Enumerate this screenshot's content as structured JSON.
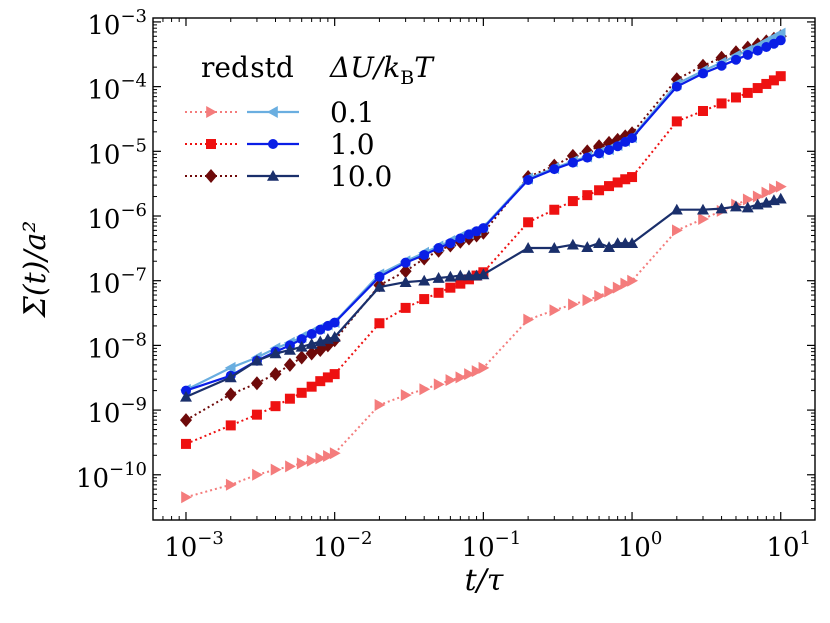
{
  "chart_data": {
    "type": "line",
    "title": "",
    "xlabel": "t/τ",
    "ylabel": "Σ(t)/a²",
    "xscale": "log",
    "yscale": "log",
    "xlim": [
      0.0006,
      17
    ],
    "ylim": [
      2e-11,
      0.00115
    ],
    "x_ticks": [
      {
        "value": 0.001,
        "mantissa": "10",
        "exp": "−3"
      },
      {
        "value": 0.01,
        "mantissa": "10",
        "exp": "−2"
      },
      {
        "value": 0.1,
        "mantissa": "10",
        "exp": "−1"
      },
      {
        "value": 1,
        "mantissa": "10",
        "exp": "0"
      },
      {
        "value": 10,
        "mantissa": "10",
        "exp": "1"
      }
    ],
    "y_ticks": [
      {
        "value": 1e-10,
        "mantissa": "10",
        "exp": "−10"
      },
      {
        "value": 1e-09,
        "mantissa": "10",
        "exp": "−9"
      },
      {
        "value": 1e-08,
        "mantissa": "10",
        "exp": "−8"
      },
      {
        "value": 1e-07,
        "mantissa": "10",
        "exp": "−7"
      },
      {
        "value": 1e-06,
        "mantissa": "10",
        "exp": "−6"
      },
      {
        "value": 1e-05,
        "mantissa": "10",
        "exp": "−5"
      },
      {
        "value": 0.0001,
        "mantissa": "10",
        "exp": "−4"
      },
      {
        "value": 0.001,
        "mantissa": "10",
        "exp": "−3"
      }
    ],
    "x": [
      0.001,
      0.002,
      0.003,
      0.004,
      0.005,
      0.006,
      0.007,
      0.008,
      0.009,
      0.01,
      0.02,
      0.03,
      0.04,
      0.05,
      0.06,
      0.07,
      0.08,
      0.09,
      0.1,
      0.2,
      0.3,
      0.4,
      0.5,
      0.6,
      0.7,
      0.8,
      0.9,
      1,
      2,
      3,
      4,
      5,
      6,
      7,
      8,
      9,
      10
    ],
    "legend": {
      "col_headers": [
        "red",
        "std"
      ],
      "title": "ΔU/k_BT",
      "title_parts": {
        "main": "ΔU/k",
        "sub": "B",
        "tail": "T"
      },
      "labels": [
        "0.1",
        "1.0",
        "10.0"
      ],
      "placement": "upper-left"
    },
    "series": [
      {
        "name": "red 0.1",
        "color": "#f47c7c",
        "marker": "triangle-right",
        "linestyle": "dotted",
        "values": [
          4.5e-11,
          7e-11,
          1e-10,
          1.2e-10,
          1.35e-10,
          1.5e-10,
          1.65e-10,
          1.8e-10,
          1.95e-10,
          2.15e-10,
          1.2e-09,
          1.7e-09,
          2.1e-09,
          2.5e-09,
          2.9e-09,
          3.2e-09,
          3.6e-09,
          4e-09,
          4.5e-09,
          2.5e-08,
          3.5e-08,
          4.3e-08,
          5e-08,
          5.8e-08,
          6.8e-08,
          7.8e-08,
          9e-08,
          1e-07,
          6e-07,
          9e-07,
          1.2e-06,
          1.5e-06,
          1.8e-06,
          2e-06,
          2.3e-06,
          2.6e-06,
          2.85e-06
        ]
      },
      {
        "name": "red 1.0",
        "color": "#ee1111",
        "marker": "square",
        "linestyle": "dotted",
        "values": [
          3e-10,
          5.8e-10,
          8.5e-10,
          1.15e-09,
          1.5e-09,
          1.85e-09,
          2.3e-09,
          2.8e-09,
          3.2e-09,
          3.6e-09,
          2.2e-08,
          3.8e-08,
          5.2e-08,
          6.5e-08,
          7.8e-08,
          9e-08,
          1.05e-07,
          1.2e-07,
          1.35e-07,
          8e-07,
          1.25e-06,
          1.7e-06,
          2.1e-06,
          2.5e-06,
          2.9e-06,
          3.3e-06,
          3.7e-06,
          4e-06,
          2.9e-05,
          4.2e-05,
          5.5e-05,
          6.8e-05,
          8e-05,
          9.5e-05,
          0.00011,
          0.000125,
          0.000145
        ]
      },
      {
        "name": "red 10.0",
        "color": "#6e0a0a",
        "marker": "diamond",
        "linestyle": "dotted",
        "values": [
          7e-10,
          1.75e-09,
          2.6e-09,
          3.6e-09,
          5e-09,
          6.5e-09,
          7.5e-09,
          8.5e-09,
          1e-08,
          1.2e-08,
          8.5e-08,
          1.4e-07,
          2.2e-07,
          2.9e-07,
          3.5e-07,
          4e-07,
          4.5e-07,
          5e-07,
          5.5e-07,
          4e-06,
          6e-06,
          8.5e-06,
          1e-05,
          1.2e-05,
          1.35e-05,
          1.5e-05,
          1.7e-05,
          1.9e-05,
          0.00013,
          0.00021,
          0.00028,
          0.00034,
          0.0004,
          0.00045,
          0.0005,
          0.00055,
          0.0006
        ]
      },
      {
        "name": "std 0.1",
        "color": "#6aaee0",
        "marker": "triangle-left",
        "linestyle": "solid",
        "values": [
          2.05e-09,
          4.5e-09,
          6.5e-09,
          9e-09,
          1.1e-08,
          1.35e-08,
          1.6e-08,
          1.85e-08,
          2.1e-08,
          2.3e-08,
          1.25e-07,
          2e-07,
          2.7e-07,
          3.4e-07,
          4.1e-07,
          4.8e-07,
          5.4e-07,
          6e-07,
          6.7e-07,
          3.8e-06,
          5.5e-06,
          7e-06,
          8.3e-06,
          9.5e-06,
          1.08e-05,
          1.25e-05,
          1.45e-05,
          1.65e-05,
          0.00011,
          0.000175,
          0.000235,
          0.0003,
          0.00036,
          0.00042,
          0.0005,
          0.00058,
          0.00066
        ]
      },
      {
        "name": "std 1.0",
        "color": "#0a1ee6",
        "marker": "circle",
        "linestyle": "solid",
        "values": [
          2e-09,
          3.4e-09,
          5.8e-09,
          8e-09,
          1e-08,
          1.25e-08,
          1.5e-08,
          1.75e-08,
          2e-08,
          2.25e-08,
          1.15e-07,
          1.9e-07,
          2.5e-07,
          3.2e-07,
          3.8e-07,
          4.5e-07,
          5.2e-07,
          5.8e-07,
          6.5e-07,
          3.6e-06,
          5.3e-06,
          6.7e-06,
          8e-06,
          9.3e-06,
          1.05e-05,
          1.2e-05,
          1.4e-05,
          1.6e-05,
          0.0001,
          0.00016,
          0.00021,
          0.00026,
          0.00031,
          0.00036,
          0.00041,
          0.00046,
          0.00052
        ]
      },
      {
        "name": "std 10.0",
        "color": "#1a2f6b",
        "marker": "triangle-up",
        "linestyle": "solid",
        "values": [
          1.6e-09,
          3.2e-09,
          5.8e-09,
          7.5e-09,
          8.5e-09,
          9.5e-09,
          1.05e-08,
          1.15e-08,
          1.25e-08,
          1.35e-08,
          8e-08,
          9.5e-08,
          1e-07,
          1.1e-07,
          1.15e-07,
          1.2e-07,
          1.2e-07,
          1.2e-07,
          1.25e-07,
          3.2e-07,
          3.2e-07,
          3.6e-07,
          3.3e-07,
          3.8e-07,
          3.3e-07,
          3.8e-07,
          3.8e-07,
          3.8e-07,
          1.25e-06,
          1.25e-06,
          1.3e-06,
          1.4e-06,
          1.35e-06,
          1.5e-06,
          1.6e-06,
          1.75e-06,
          1.85e-06
        ]
      }
    ]
  }
}
